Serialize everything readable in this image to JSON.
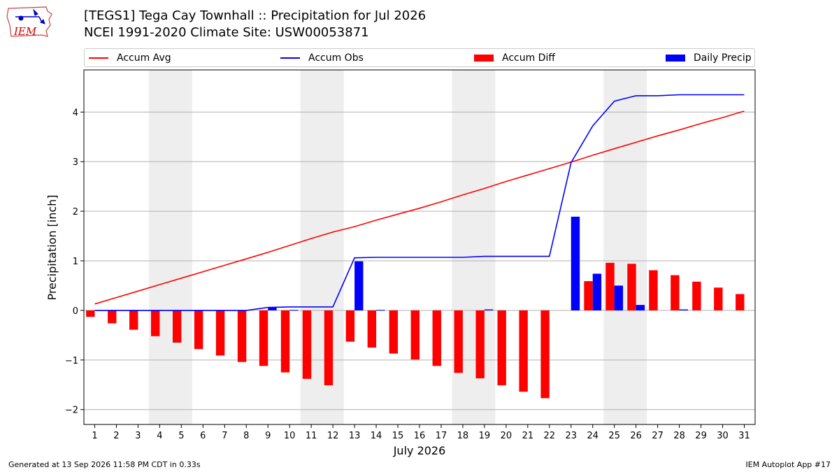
{
  "header": {
    "title_line1": "[TEGS1] Tega Cay Townhall :: Precipitation for Jul 2026",
    "title_line2": "NCEI 1991-2020 Climate Site: USW00053871"
  },
  "logo": {
    "text": "IEM"
  },
  "footer": {
    "left": "Generated at 13 Sep 2026 11:58 PM CDT in 0.33s",
    "right": "IEM Autoplot App #17"
  },
  "colors": {
    "avg": "#ff0000",
    "obs": "#0000ff",
    "diff": "#ff0000",
    "daily": "#0000ff",
    "weekend_shade": "#eeeeee"
  },
  "chart_data": {
    "type": "bar",
    "xlabel": "July 2026",
    "ylabel": "Precipitation [inch]",
    "ylim": [
      -2.3,
      4.85
    ],
    "xlim": [
      0.5,
      31.5
    ],
    "yticks": [
      -2,
      -1,
      0,
      1,
      2,
      3,
      4
    ],
    "ytick_labels": [
      "−2",
      "−1",
      "0",
      "1",
      "2",
      "3",
      "4"
    ],
    "grid": "y",
    "legend_placement": "top",
    "categories": [
      "1",
      "2",
      "3",
      "4",
      "5",
      "6",
      "7",
      "8",
      "9",
      "10",
      "11",
      "12",
      "13",
      "14",
      "15",
      "16",
      "17",
      "18",
      "19",
      "20",
      "21",
      "22",
      "23",
      "24",
      "25",
      "26",
      "27",
      "28",
      "29",
      "30",
      "31"
    ],
    "shaded_days": [
      [
        4,
        5
      ],
      [
        11,
        12
      ],
      [
        18,
        19
      ],
      [
        25,
        26
      ]
    ],
    "series": [
      {
        "name": "Accum Avg",
        "kind": "line",
        "values": [
          0.13,
          0.26,
          0.39,
          0.52,
          0.65,
          0.78,
          0.91,
          1.04,
          1.17,
          1.31,
          1.45,
          1.58,
          1.69,
          1.82,
          1.94,
          2.06,
          2.19,
          2.33,
          2.46,
          2.6,
          2.73,
          2.86,
          2.99,
          3.13,
          3.26,
          3.39,
          3.52,
          3.64,
          3.77,
          3.89,
          4.02
        ]
      },
      {
        "name": "Accum Obs",
        "kind": "line",
        "values": [
          0,
          0,
          0,
          0,
          0,
          0,
          0,
          0,
          0.06,
          0.07,
          0.07,
          0.07,
          1.06,
          1.07,
          1.07,
          1.07,
          1.07,
          1.07,
          1.09,
          1.09,
          1.09,
          1.09,
          2.98,
          3.72,
          4.22,
          4.33,
          4.33,
          4.35,
          4.35,
          4.35,
          4.35
        ]
      },
      {
        "name": "Accum Diff",
        "kind": "bar",
        "values": [
          -0.13,
          -0.26,
          -0.39,
          -0.52,
          -0.65,
          -0.78,
          -0.91,
          -1.04,
          -1.12,
          -1.25,
          -1.38,
          -1.51,
          -0.63,
          -0.75,
          -0.87,
          -0.99,
          -1.12,
          -1.26,
          -1.37,
          -1.51,
          -1.64,
          -1.77,
          0,
          0.59,
          0.96,
          0.94,
          0.81,
          0.71,
          0.58,
          0.46,
          0.33
        ]
      },
      {
        "name": "Daily Precip",
        "kind": "bar",
        "values": [
          0,
          0,
          0,
          0,
          0,
          0,
          0,
          0,
          0.06,
          0.01,
          0,
          0,
          0.99,
          0.01,
          0,
          0,
          0,
          0,
          0.02,
          0,
          0,
          0,
          1.89,
          0.74,
          0.5,
          0.11,
          0,
          0.02,
          0,
          0,
          0
        ]
      }
    ]
  }
}
